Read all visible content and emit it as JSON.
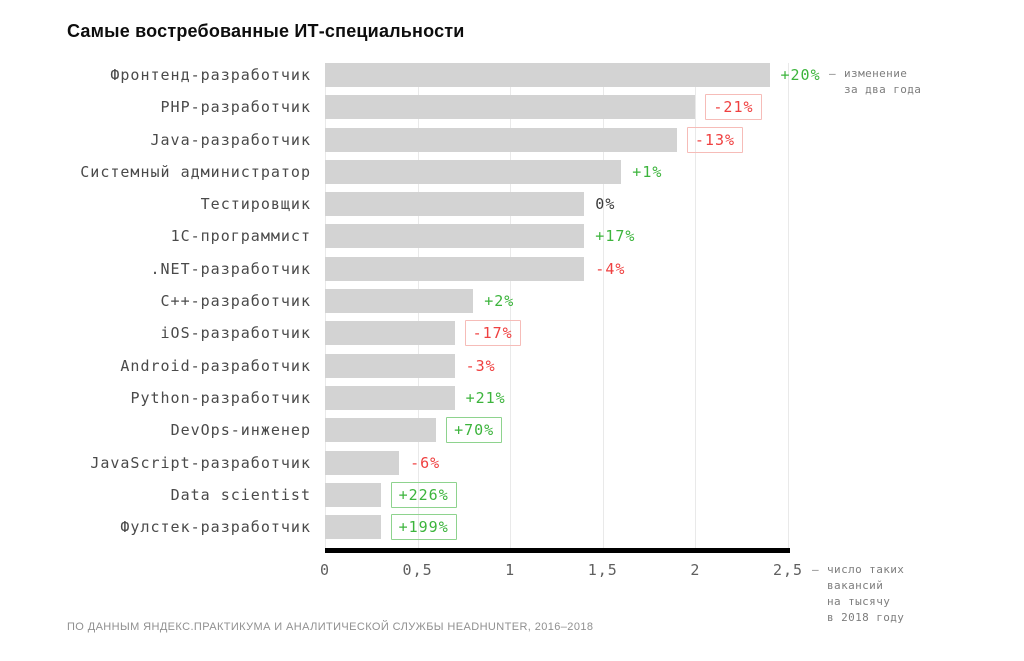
{
  "title": "Самые востребованные ИТ-специальности",
  "footer": "ПО ДАННЫМ ЯНДЕКС.ПРАКТИКУМА И АНАЛИТИЧЕСКОЙ СЛУЖБЫ HEADHUNTER,  2016–2018",
  "annotations": {
    "change_note": {
      "dash": "—",
      "lines": [
        "изменение",
        "за два года"
      ]
    },
    "axis_note": {
      "dash": "—",
      "lines": [
        "число таких",
        "вакансий",
        "на тысячу",
        "в 2018 году"
      ]
    }
  },
  "colors": {
    "bar": "#d3d3d3",
    "grid": "#e9e9e9",
    "axis": "#000000",
    "positive": "#3cb43c",
    "negative": "#ef4040",
    "neutral": "#3b3b3b",
    "positive_box_border": "#8ed38e",
    "negative_box_border": "#f6bcb8"
  },
  "chart_data": {
    "type": "bar",
    "orientation": "horizontal",
    "title": "Самые востребованные ИТ-специальности",
    "xlabel": "число таких вакансий на тысячу в 2018 году",
    "change_label_meaning": "изменение за два года",
    "xlim": [
      0,
      2.5
    ],
    "grid": true,
    "x_ticks": [
      {
        "label": "0",
        "value": 0
      },
      {
        "label": "0,5",
        "value": 0.5
      },
      {
        "label": "1",
        "value": 1
      },
      {
        "label": "1,5",
        "value": 1.5
      },
      {
        "label": "2",
        "value": 2
      },
      {
        "label": "2,5",
        "value": 2.5
      }
    ],
    "rows": [
      {
        "category": "Фронтенд-разработчик",
        "value": 2.4,
        "change": "+20%",
        "direction": "positive",
        "boxed": false
      },
      {
        "category": "PHP-разработчик",
        "value": 2.0,
        "change": "-21%",
        "direction": "negative",
        "boxed": true
      },
      {
        "category": "Java-разработчик",
        "value": 1.9,
        "change": "-13%",
        "direction": "negative",
        "boxed": true
      },
      {
        "category": "Системный администратор",
        "value": 1.6,
        "change": "+1%",
        "direction": "positive",
        "boxed": false
      },
      {
        "category": "Тестировщик",
        "value": 1.4,
        "change": "0%",
        "direction": "neutral",
        "boxed": false
      },
      {
        "category": "1С-программист",
        "value": 1.4,
        "change": "+17%",
        "direction": "positive",
        "boxed": false
      },
      {
        "category": ".NET-разработчик",
        "value": 1.4,
        "change": "-4%",
        "direction": "negative",
        "boxed": false
      },
      {
        "category": "C++-разработчик",
        "value": 0.8,
        "change": "+2%",
        "direction": "positive",
        "boxed": false
      },
      {
        "category": "iOS-разработчик",
        "value": 0.7,
        "change": "-17%",
        "direction": "negative",
        "boxed": true
      },
      {
        "category": "Android-разработчик",
        "value": 0.7,
        "change": "-3%",
        "direction": "negative",
        "boxed": false
      },
      {
        "category": "Python-разработчик",
        "value": 0.7,
        "change": "+21%",
        "direction": "positive",
        "boxed": false
      },
      {
        "category": "DevOps-инженер",
        "value": 0.6,
        "change": "+70%",
        "direction": "positive",
        "boxed": true
      },
      {
        "category": "JavaScript-разработчик",
        "value": 0.4,
        "change": "-6%",
        "direction": "negative",
        "boxed": false
      },
      {
        "category": "Data scientist",
        "value": 0.3,
        "change": "+226%",
        "direction": "positive",
        "boxed": true
      },
      {
        "category": "Фулстек-разработчик",
        "value": 0.3,
        "change": "+199%",
        "direction": "positive",
        "boxed": true
      }
    ]
  }
}
